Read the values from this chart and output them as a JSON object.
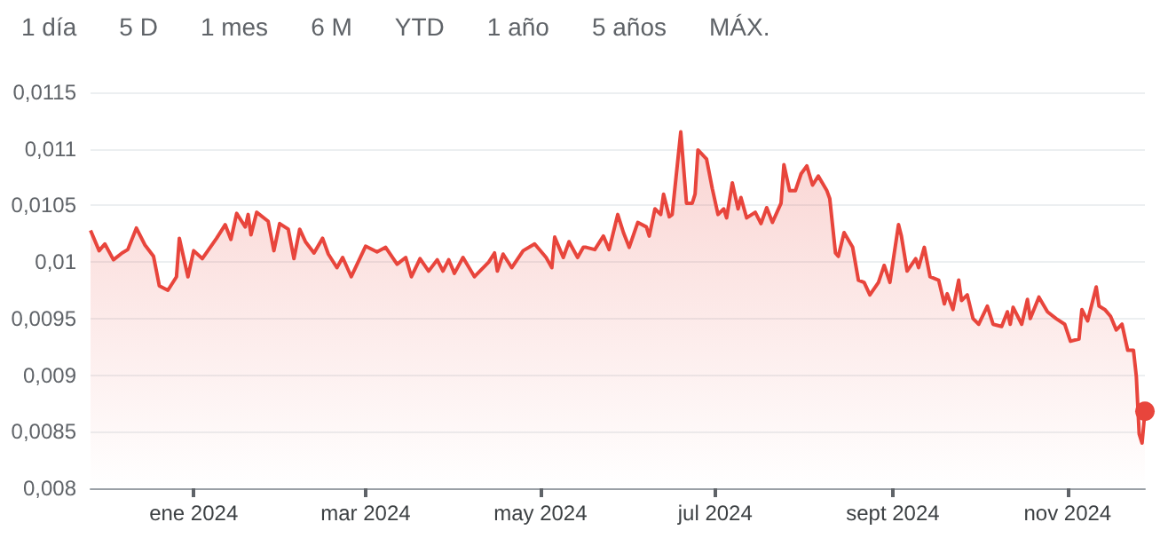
{
  "chart_data": {
    "type": "area",
    "annotations": [
      "1 día",
      "5 D",
      "1 mes",
      "6 M",
      "YTD",
      "1 año",
      "5 años",
      "MÁX."
    ],
    "x": [
      "2023-11-26",
      "2023-11-29",
      "2023-12-01",
      "2023-12-04",
      "2023-12-07",
      "2023-12-09",
      "2023-12-12",
      "2023-12-15",
      "2023-12-18",
      "2023-12-20",
      "2023-12-23",
      "2023-12-26",
      "2023-12-27",
      "2023-12-30",
      "2024-01-01",
      "2024-01-04",
      "2024-01-09",
      "2024-01-12",
      "2024-01-14",
      "2024-01-16",
      "2024-01-19",
      "2024-01-20",
      "2024-01-21",
      "2024-01-23",
      "2024-01-27",
      "2024-01-29",
      "2024-01-31",
      "2024-02-03",
      "2024-02-05",
      "2024-02-07",
      "2024-02-09",
      "2024-02-12",
      "2024-02-15",
      "2024-02-17",
      "2024-02-20",
      "2024-02-22",
      "2024-02-25",
      "2024-03-01",
      "2024-03-05",
      "2024-03-08",
      "2024-03-12",
      "2024-03-15",
      "2024-03-17",
      "2024-03-20",
      "2024-03-23",
      "2024-03-26",
      "2024-03-28",
      "2024-03-30",
      "2024-04-01",
      "2024-04-04",
      "2024-04-08",
      "2024-04-13",
      "2024-04-15",
      "2024-04-16",
      "2024-04-18",
      "2024-04-21",
      "2024-04-25",
      "2024-04-29",
      "2024-05-03",
      "2024-05-05",
      "2024-05-06",
      "2024-05-09",
      "2024-05-11",
      "2024-05-14",
      "2024-05-16",
      "2024-05-17",
      "2024-05-20",
      "2024-05-23",
      "2024-05-25",
      "2024-05-28",
      "2024-05-30",
      "2024-06-01",
      "2024-06-04",
      "2024-06-07",
      "2024-06-08",
      "2024-06-10",
      "2024-06-12",
      "2024-06-13",
      "2024-06-15",
      "2024-06-16",
      "2024-06-19",
      "2024-06-21",
      "2024-06-23",
      "2024-06-24",
      "2024-06-25",
      "2024-06-28",
      "2024-06-30",
      "2024-07-02",
      "2024-07-04",
      "2024-07-05",
      "2024-07-07",
      "2024-07-09",
      "2024-07-10",
      "2024-07-12",
      "2024-07-15",
      "2024-07-17",
      "2024-07-19",
      "2024-07-21",
      "2024-07-24",
      "2024-07-25",
      "2024-07-27",
      "2024-07-29",
      "2024-07-31",
      "2024-08-02",
      "2024-08-04",
      "2024-08-06",
      "2024-08-09",
      "2024-08-10",
      "2024-08-12",
      "2024-08-13",
      "2024-08-15",
      "2024-08-18",
      "2024-08-20",
      "2024-08-22",
      "2024-08-24",
      "2024-08-27",
      "2024-08-29",
      "2024-08-31",
      "2024-09-03",
      "2024-09-04",
      "2024-09-06",
      "2024-09-09",
      "2024-09-10",
      "2024-09-12",
      "2024-09-14",
      "2024-09-17",
      "2024-09-19",
      "2024-09-20",
      "2024-09-22",
      "2024-09-24",
      "2024-09-25",
      "2024-09-27",
      "2024-09-29",
      "2024-10-01",
      "2024-10-04",
      "2024-10-06",
      "2024-10-09",
      "2024-10-11",
      "2024-10-12",
      "2024-10-13",
      "2024-10-16",
      "2024-10-18",
      "2024-10-19",
      "2024-10-22",
      "2024-10-25",
      "2024-10-28",
      "2024-10-31",
      "2024-11-02",
      "2024-11-05",
      "2024-11-06",
      "2024-11-08",
      "2024-11-09",
      "2024-11-11",
      "2024-11-12",
      "2024-11-14",
      "2024-11-16",
      "2024-11-18",
      "2024-11-20",
      "2024-11-22",
      "2024-11-24",
      "2024-11-25",
      "2024-11-26",
      "2024-11-27",
      "2024-11-28"
    ],
    "values": [
      0.01028,
      0.0101,
      0.01016,
      0.01002,
      0.01008,
      0.01011,
      0.0103,
      0.01015,
      0.01005,
      0.00979,
      0.00975,
      0.00987,
      0.01021,
      0.00987,
      0.0101,
      0.01003,
      0.01021,
      0.01033,
      0.0102,
      0.01043,
      0.01031,
      0.01042,
      0.01024,
      0.01044,
      0.01036,
      0.0101,
      0.01034,
      0.01029,
      0.01003,
      0.01029,
      0.01018,
      0.01008,
      0.01021,
      0.01007,
      0.00995,
      0.01004,
      0.00987,
      0.01014,
      0.01009,
      0.01013,
      0.00998,
      0.01004,
      0.00987,
      0.01003,
      0.00992,
      0.01002,
      0.00992,
      0.01002,
      0.0099,
      0.01004,
      0.00987,
      0.01,
      0.01008,
      0.00992,
      0.01007,
      0.00995,
      0.0101,
      0.01016,
      0.01004,
      0.00995,
      0.01022,
      0.01004,
      0.01018,
      0.01004,
      0.01013,
      0.01013,
      0.01011,
      0.01023,
      0.01011,
      0.01042,
      0.01026,
      0.01013,
      0.01035,
      0.01031,
      0.01023,
      0.01047,
      0.01042,
      0.0106,
      0.0104,
      0.01042,
      0.01115,
      0.01052,
      0.01052,
      0.0106,
      0.01099,
      0.01091,
      0.01065,
      0.01042,
      0.01047,
      0.01039,
      0.0107,
      0.01047,
      0.01057,
      0.01039,
      0.01044,
      0.01034,
      0.01048,
      0.01035,
      0.01052,
      0.01086,
      0.01063,
      0.01063,
      0.01078,
      0.01085,
      0.01068,
      0.01076,
      0.01063,
      0.01056,
      0.01008,
      0.01005,
      0.01026,
      0.01013,
      0.00984,
      0.00982,
      0.00971,
      0.00982,
      0.00997,
      0.00982,
      0.01033,
      0.01023,
      0.00992,
      0.01003,
      0.00995,
      0.01013,
      0.00987,
      0.00984,
      0.00963,
      0.00972,
      0.00958,
      0.00984,
      0.00966,
      0.00971,
      0.0095,
      0.00945,
      0.00961,
      0.00945,
      0.00943,
      0.00956,
      0.00945,
      0.0096,
      0.00945,
      0.00967,
      0.0095,
      0.00969,
      0.00956,
      0.0095,
      0.00945,
      0.0093,
      0.00932,
      0.00958,
      0.00948,
      0.00958,
      0.00978,
      0.00961,
      0.00958,
      0.00952,
      0.0094,
      0.00945,
      0.00922,
      0.00922,
      0.00899,
      0.00848,
      0.0084,
      0.00868
    ],
    "color": "#e8453c",
    "xlim": [
      "2023-11-26",
      "2024-11-28"
    ],
    "xticks": [
      {
        "value": "2024-01-01",
        "label": "ene 2024"
      },
      {
        "value": "2024-03-01",
        "label": "mar 2024"
      },
      {
        "value": "2024-05-01",
        "label": "may 2024"
      },
      {
        "value": "2024-07-01",
        "label": "jul 2024"
      },
      {
        "value": "2024-09-01",
        "label": "sept 2024"
      },
      {
        "value": "2024-11-01",
        "label": "nov 2024"
      }
    ],
    "ylim": [
      0.008,
      0.0115
    ],
    "yticks": [
      {
        "value": 0.008,
        "label": "0,008"
      },
      {
        "value": 0.0085,
        "label": "0,0085"
      },
      {
        "value": 0.009,
        "label": "0,009"
      },
      {
        "value": 0.0095,
        "label": "0,0095"
      },
      {
        "value": 0.01,
        "label": "0,01"
      },
      {
        "value": 0.0105,
        "label": "0,0105"
      },
      {
        "value": 0.011,
        "label": "0,011"
      },
      {
        "value": 0.0115,
        "label": "0,0115"
      }
    ],
    "grid": "y"
  }
}
